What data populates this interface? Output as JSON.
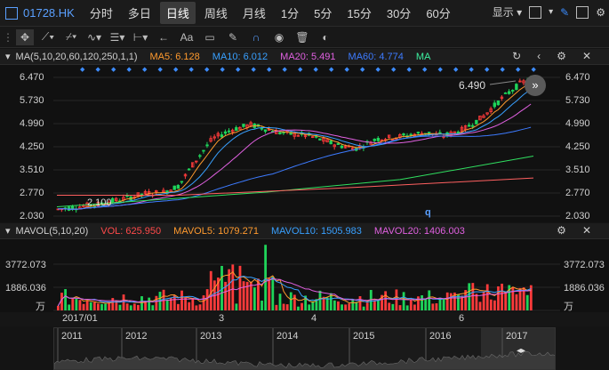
{
  "header": {
    "symbol": "01728.HK",
    "tabs": [
      "分时",
      "多日",
      "日线",
      "周线",
      "月线",
      "1分",
      "5分",
      "15分",
      "30分",
      "60分"
    ],
    "active_tab": "日线",
    "display_label": "显示"
  },
  "toolbar_icons": [
    "crosshair-icon",
    "line-tool-icon",
    "channel-tool-icon",
    "wave-tool-icon",
    "fib-tool-icon",
    "measure-tool-icon",
    "arrow-back-icon",
    "text-tool-icon",
    "note-tool-icon",
    "pencil-icon",
    "magnet-icon",
    "eye-icon",
    "trash-icon",
    "toggle-icon"
  ],
  "text_tool_label": "Aa",
  "main_legend": {
    "name": "MA(5,10,20,60,120,250,1,1)",
    "ma5": "MA5: 6.128",
    "ma10": "MA10: 6.012",
    "ma20": "MA20: 5.491",
    "ma60": "MA60: 4.774",
    "ma_label": "MA"
  },
  "price_axis": [
    "6.470",
    "5.730",
    "4.990",
    "4.250",
    "3.510",
    "2.770",
    "2.030"
  ],
  "annotations": {
    "low": "2.100",
    "high": "6.490",
    "q_marker": "q"
  },
  "vol_legend": {
    "name": "MAVOL(5,10,20)",
    "vol": "VOL: 625.950",
    "mavol5": "MAVOL5: 1079.271",
    "mavol10": "MAVOL10: 1505.983",
    "mavol20": "MAVOL20: 1406.003"
  },
  "vol_axis": [
    "3772.073",
    "1886.036",
    "万"
  ],
  "time_axis": [
    "2017/01",
    "3",
    "4",
    "6"
  ],
  "overview_axis": [
    "2011",
    "2012",
    "2013",
    "2014",
    "2015",
    "2016",
    "2017"
  ],
  "colors": {
    "up": "#ff3b3b",
    "down": "#1fd45a",
    "ma5": "#ff9a2e",
    "ma10": "#38a0ff",
    "ma20": "#e060e0",
    "ma60": "#3d7bff"
  }
}
